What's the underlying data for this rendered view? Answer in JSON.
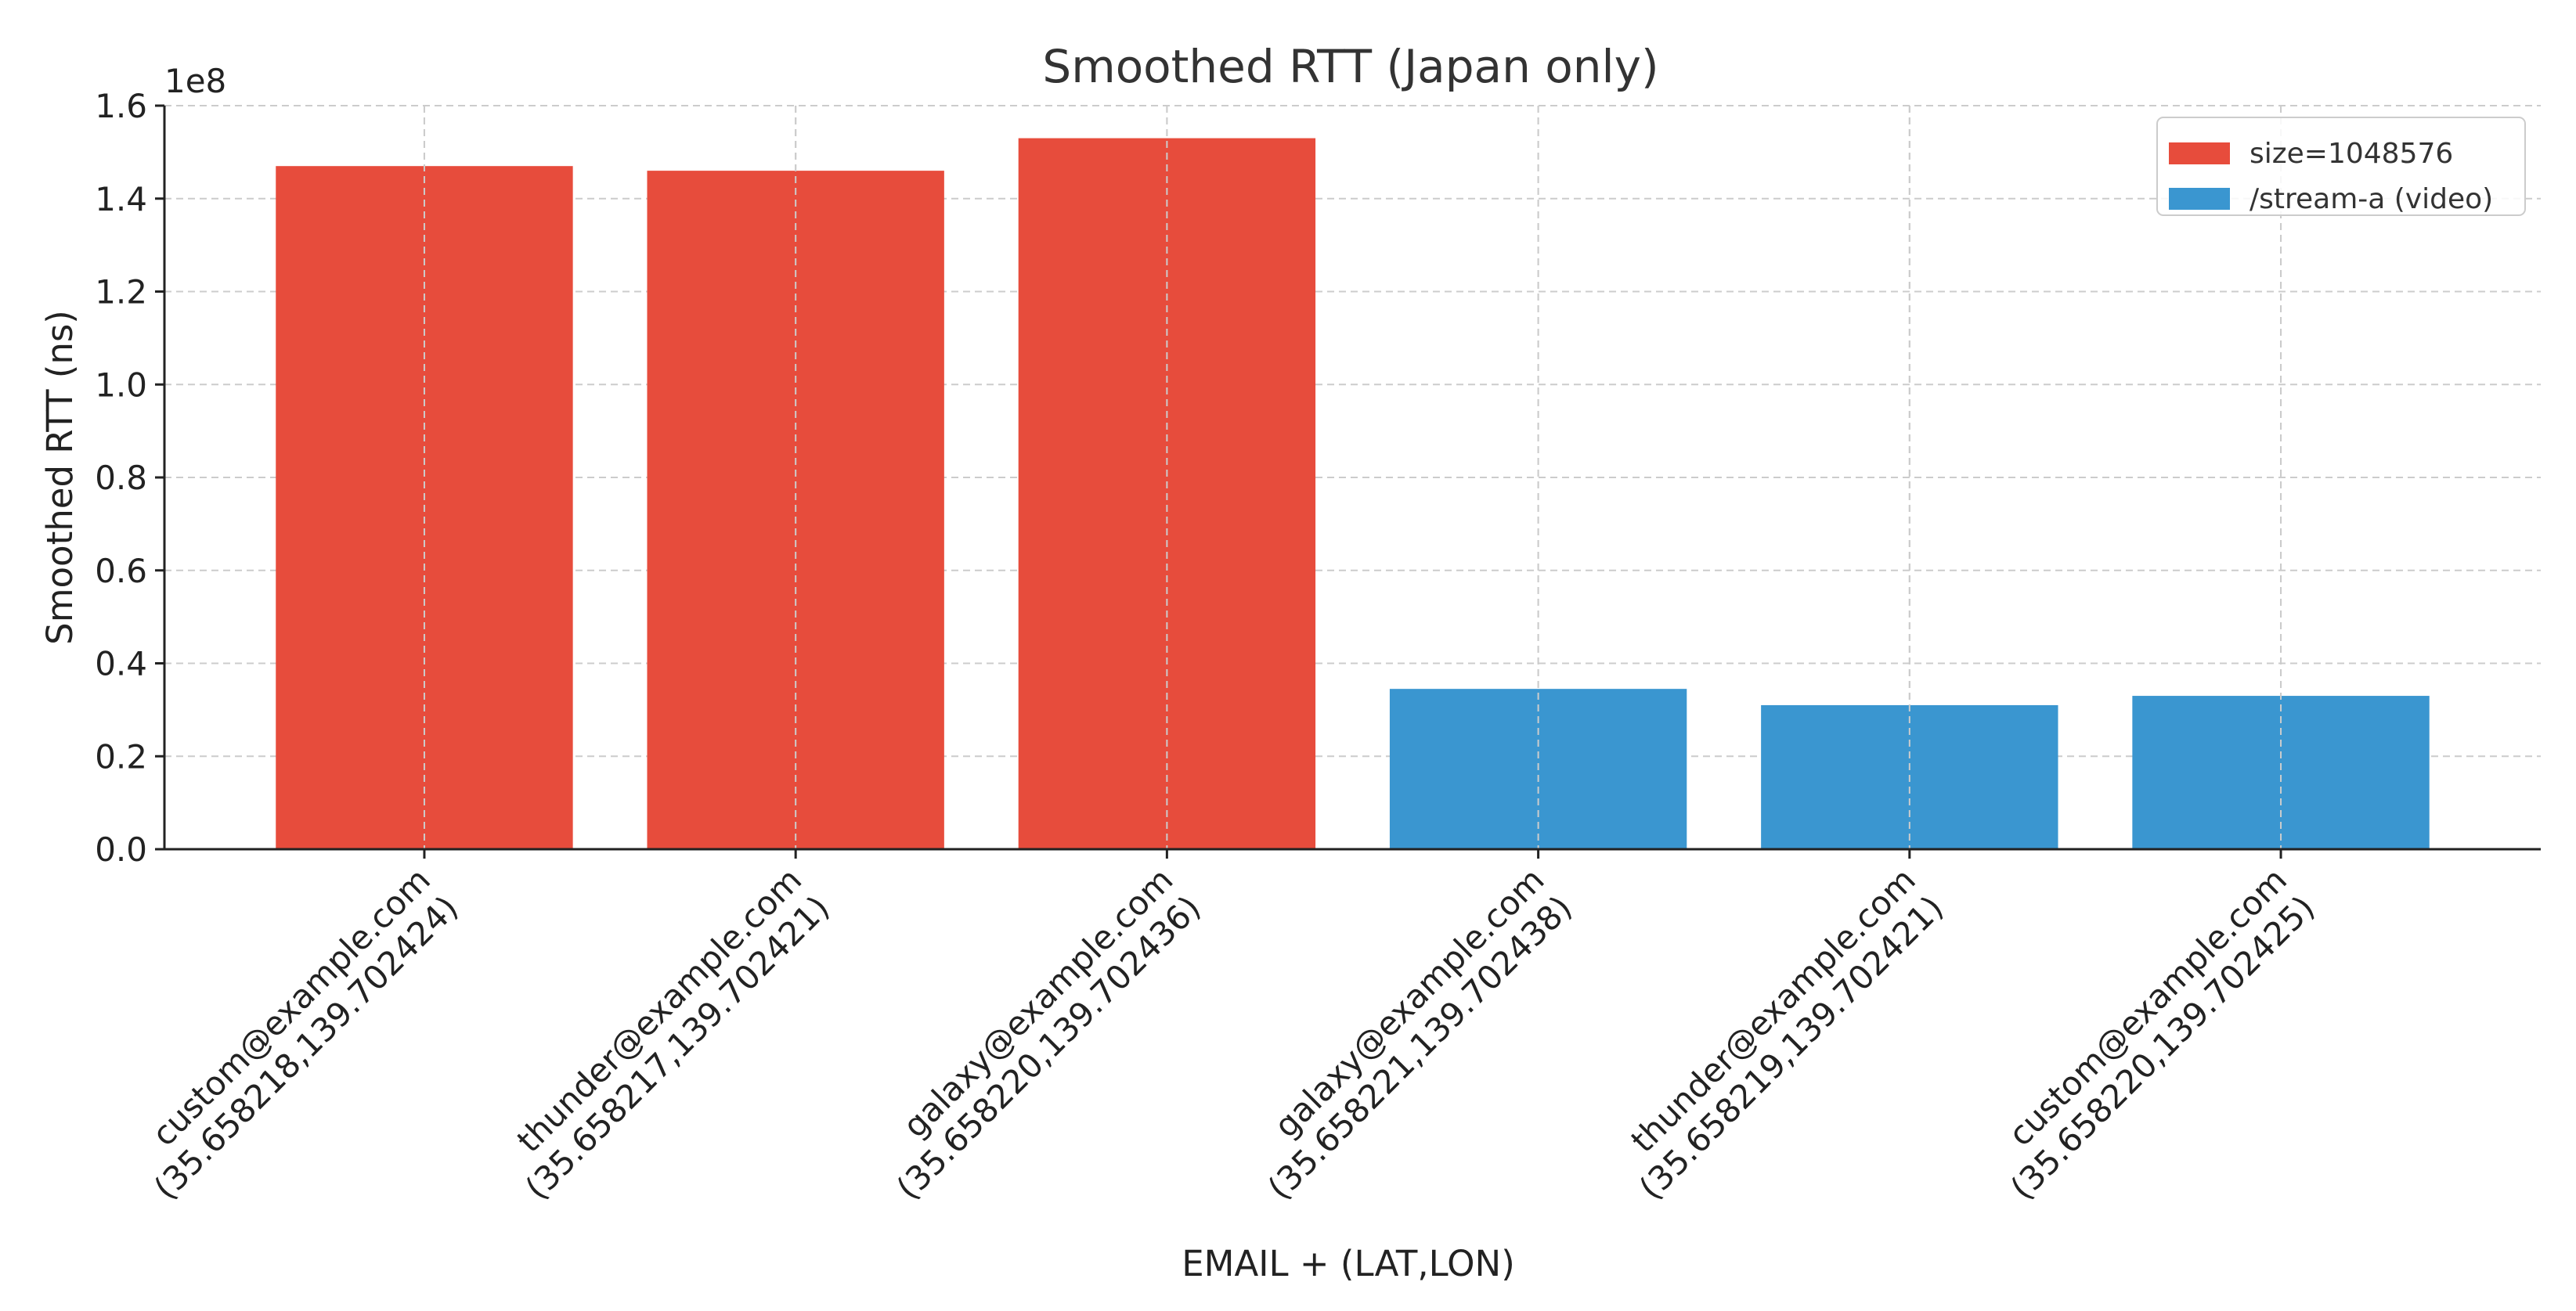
{
  "chart_data": {
    "type": "bar",
    "title": "Smoothed RTT (Japan only)",
    "xlabel": "EMAIL + (LAT,LON)",
    "ylabel": "Smoothed RTT (ns)",
    "y_scale_label": "1e8",
    "ylim": [
      0,
      1.6
    ],
    "y_ticks": [
      "0.0",
      "0.2",
      "0.4",
      "0.6",
      "0.8",
      "1.0",
      "1.2",
      "1.4",
      "1.6"
    ],
    "grid": true,
    "legend_position": "top-right",
    "categories": [
      [
        "custom@example.com",
        "(35.658218,139.702424)"
      ],
      [
        "thunder@example.com",
        "(35.658217,139.702421)"
      ],
      [
        "galaxy@example.com",
        "(35.658220,139.702436)"
      ],
      [
        "galaxy@example.com",
        "(35.658221,139.702438)"
      ],
      [
        "thunder@example.com",
        "(35.658219,139.702421)"
      ],
      [
        "custom@example.com",
        "(35.658220,139.702425)"
      ]
    ],
    "values": [
      1.47,
      1.46,
      1.53,
      0.345,
      0.31,
      0.33
    ],
    "bar_series": [
      0,
      0,
      0,
      1,
      1,
      1
    ],
    "series": [
      {
        "name": "size=1048576",
        "color": "#e74c3c"
      },
      {
        "name": "/stream-a (video)",
        "color": "#3a96d0"
      }
    ]
  }
}
